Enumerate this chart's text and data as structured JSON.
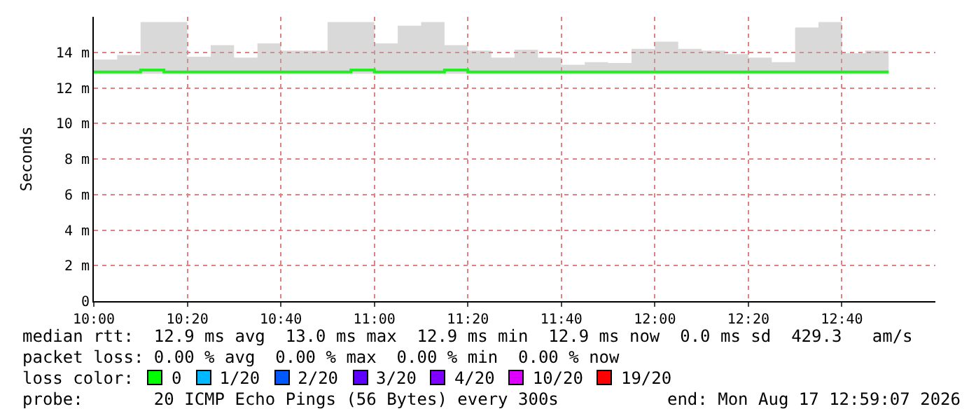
{
  "chart_data": {
    "type": "step",
    "ylabel": "Seconds",
    "x": [
      "2026-08-17T10:00",
      "2026-08-17T10:05",
      "2026-08-17T10:10",
      "2026-08-17T10:15",
      "2026-08-17T10:20",
      "2026-08-17T10:25",
      "2026-08-17T10:30",
      "2026-08-17T10:35",
      "2026-08-17T10:40",
      "2026-08-17T10:45",
      "2026-08-17T10:50",
      "2026-08-17T10:55",
      "2026-08-17T11:00",
      "2026-08-17T11:05",
      "2026-08-17T11:10",
      "2026-08-17T11:15",
      "2026-08-17T11:20",
      "2026-08-17T11:25",
      "2026-08-17T11:30",
      "2026-08-17T11:35",
      "2026-08-17T11:40",
      "2026-08-17T11:45",
      "2026-08-17T11:50",
      "2026-08-17T11:55",
      "2026-08-17T12:00",
      "2026-08-17T12:05",
      "2026-08-17T12:10",
      "2026-08-17T12:15",
      "2026-08-17T12:20",
      "2026-08-17T12:25",
      "2026-08-17T12:30",
      "2026-08-17T12:35",
      "2026-08-17T12:40",
      "2026-08-17T12:45",
      "2026-08-17T12:50"
    ],
    "series": [
      {
        "color": "#22ee22",
        "values": [
          12.9,
          12.9,
          13.0,
          12.9,
          12.9,
          12.9,
          12.9,
          12.9,
          12.9,
          12.9,
          12.9,
          13.0,
          12.9,
          12.9,
          12.9,
          13.0,
          12.9,
          12.9,
          12.9,
          12.9,
          12.9,
          12.9,
          12.9,
          12.9,
          12.9,
          12.9,
          12.9,
          12.9,
          12.9,
          12.9,
          12.9,
          12.9,
          12.9,
          12.9,
          12.9
        ],
        "lower": [
          12.8,
          12.8,
          12.8,
          12.8,
          12.8,
          12.8,
          12.8,
          12.8,
          12.8,
          12.8,
          12.8,
          12.8,
          12.8,
          12.8,
          12.8,
          12.8,
          12.8,
          12.8,
          12.8,
          12.8,
          12.8,
          12.8,
          12.8,
          12.8,
          12.8,
          12.8,
          12.8,
          12.8,
          12.8,
          12.8,
          12.8,
          12.8,
          12.8,
          12.8,
          12.8
        ],
        "upper": [
          13.6,
          13.85,
          15.7,
          15.7,
          13.75,
          14.4,
          13.7,
          14.5,
          14.1,
          14.1,
          15.7,
          15.7,
          14.5,
          15.5,
          15.7,
          14.4,
          14.1,
          13.7,
          14.15,
          13.7,
          13.3,
          13.45,
          13.4,
          14.2,
          14.6,
          14.2,
          14.1,
          13.9,
          13.7,
          13.45,
          15.4,
          15.7,
          13.95,
          14.1,
          14.1
        ]
      }
    ],
    "xlim": [
      "2026-08-17T10:00",
      "2026-08-17T13:00"
    ],
    "xticks": [
      {
        "value": "2026-08-17T10:00",
        "label": "10:00"
      },
      {
        "value": "2026-08-17T10:20",
        "label": "10:20"
      },
      {
        "value": "2026-08-17T10:40",
        "label": "10:40"
      },
      {
        "value": "2026-08-17T11:00",
        "label": "11:00"
      },
      {
        "value": "2026-08-17T11:20",
        "label": "11:20"
      },
      {
        "value": "2026-08-17T11:40",
        "label": "11:40"
      },
      {
        "value": "2026-08-17T12:00",
        "label": "12:00"
      },
      {
        "value": "2026-08-17T12:20",
        "label": "12:20"
      },
      {
        "value": "2026-08-17T12:40",
        "label": "12:40"
      }
    ],
    "ylim": [
      0,
      16
    ],
    "yticks": [
      0,
      {
        "value": 2,
        "label": "2 m"
      },
      {
        "value": 4,
        "label": "4 m"
      },
      {
        "value": 6,
        "label": "6 m"
      },
      {
        "value": 8,
        "label": "8 m"
      },
      {
        "value": 10,
        "label": "10 m"
      },
      {
        "value": 12,
        "label": "12 m"
      },
      {
        "value": 14,
        "label": "14 m"
      }
    ],
    "grid": true,
    "annotations": [
      "median rtt:  12.9 ms avg  13.0 ms max  12.9 ms min  12.9 ms now  0.0 ms sd  429.3   am/s",
      "packet loss: 0.00 % avg  0.00 % max  0.00 % min  0.00 % now",
      "loss color:",
      "0",
      "1/20",
      "2/20",
      "3/20",
      "4/20",
      "10/20",
      "19/20",
      "probe:       20 ICMP Echo Pings (56 Bytes) every 300s",
      "end: Mon Aug 17 12:59:07 2026"
    ]
  }
}
